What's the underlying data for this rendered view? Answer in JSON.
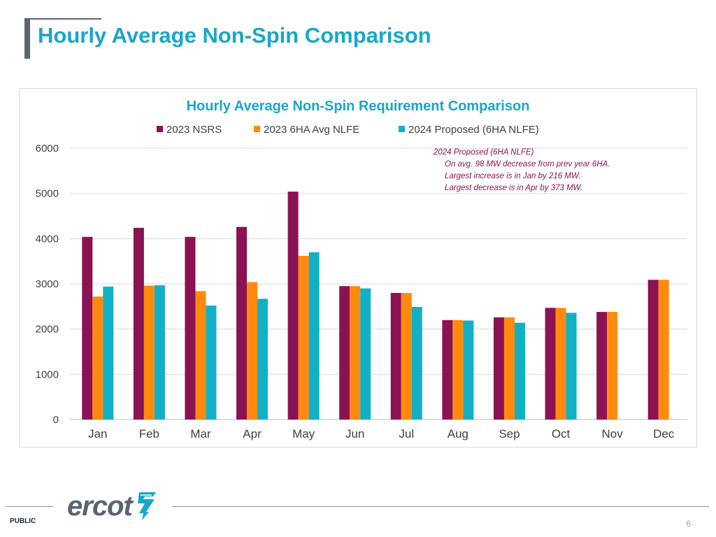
{
  "slide": {
    "title": "Hourly Average Non-Spin Comparison",
    "classification": "PUBLIC",
    "page_number": "6",
    "logo_text": "ercot"
  },
  "colors": {
    "title": "#1aa6c8",
    "series_nsrs": "#8b1253",
    "series_6ha": "#ff8a0d",
    "series_2024": "#12b0c6",
    "note_text": "#8b1253"
  },
  "chart_data": {
    "type": "bar",
    "title": "Hourly Average Non-Spin Requirement Comparison",
    "xlabel": "",
    "ylabel": "",
    "ylim": [
      0,
      6000
    ],
    "yticks": [
      0,
      1000,
      2000,
      3000,
      4000,
      5000,
      6000
    ],
    "grid": true,
    "legend_position": "top",
    "categories": [
      "Jan",
      "Feb",
      "Mar",
      "Apr",
      "May",
      "Jun",
      "Jul",
      "Aug",
      "Sep",
      "Oct",
      "Nov",
      "Dec"
    ],
    "series": [
      {
        "name": "2023 NSRS",
        "values": [
          4040,
          4240,
          4040,
          4260,
          5040,
          2950,
          2800,
          2200,
          2260,
          2470,
          2380,
          3090
        ]
      },
      {
        "name": "2023 6HA Avg NLFE",
        "values": [
          2720,
          2960,
          2840,
          3040,
          3620,
          2950,
          2800,
          2200,
          2260,
          2470,
          2380,
          3090
        ]
      },
      {
        "name": "2024 Proposed (6HA NLFE)",
        "values": [
          2940,
          2970,
          2520,
          2670,
          3700,
          2900,
          2490,
          2190,
          2140,
          2360,
          null,
          null
        ]
      }
    ],
    "annotation": {
      "lines": [
        "2024 Proposed (6HA NLFE)",
        "On avg. 98 MW decrease from prev year 6HA.",
        "Largest increase is in Jan by 216 MW.",
        "Largest decrease is in Apr by 373 MW."
      ]
    }
  }
}
